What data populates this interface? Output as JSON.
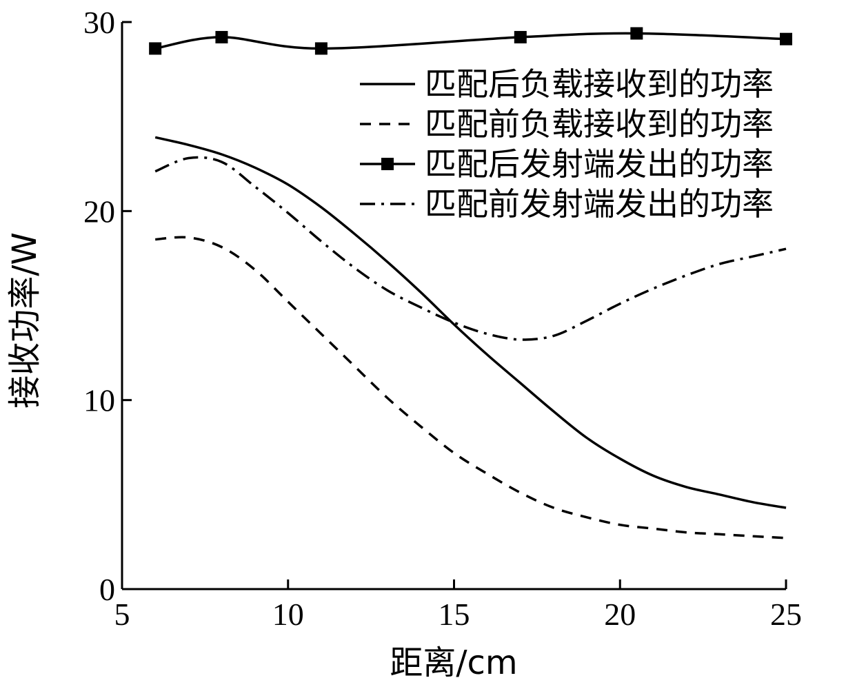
{
  "chart_data": {
    "type": "line",
    "title": "",
    "xlabel": "距离/cm",
    "ylabel": "接收功率/W",
    "xlim": [
      5,
      25
    ],
    "ylim": [
      0,
      30
    ],
    "xticks": [
      5,
      10,
      15,
      20,
      25
    ],
    "yticks": [
      0,
      10,
      20,
      30
    ],
    "grid": false,
    "legend_position": "top-right",
    "series": [
      {
        "name": "匹配后负载接收到的功率",
        "style": "solid",
        "x": [
          6,
          7,
          8,
          9,
          10,
          11,
          12,
          13,
          14,
          15,
          16,
          17,
          18,
          19,
          20,
          21,
          22,
          23,
          24,
          25
        ],
        "y": [
          23.9,
          23.5,
          23.0,
          22.3,
          21.4,
          20.2,
          18.8,
          17.3,
          15.7,
          14.0,
          12.4,
          10.9,
          9.4,
          8.0,
          6.9,
          6.0,
          5.4,
          5.0,
          4.6,
          4.3
        ]
      },
      {
        "name": "匹配前负载接收到的功率",
        "style": "dashed",
        "x": [
          6,
          7,
          8,
          9,
          10,
          11,
          12,
          13,
          14,
          15,
          16,
          17,
          18,
          19,
          20,
          21,
          22,
          23,
          24,
          25
        ],
        "y": [
          18.5,
          18.6,
          18.1,
          16.9,
          15.2,
          13.5,
          11.8,
          10.1,
          8.6,
          7.2,
          6.1,
          5.1,
          4.3,
          3.8,
          3.4,
          3.2,
          3.0,
          2.9,
          2.8,
          2.7
        ]
      },
      {
        "name": "匹配后发射端发出的功率",
        "style": "solid-square-markers",
        "x": [
          6,
          8,
          11,
          17,
          20.5,
          25
        ],
        "y": [
          28.6,
          29.2,
          28.6,
          29.2,
          29.4,
          29.1
        ]
      },
      {
        "name": "匹配前发射端发出的功率",
        "style": "dash-dot",
        "x": [
          6,
          7,
          8,
          9,
          10,
          11,
          12,
          13,
          14,
          15,
          16,
          17,
          18,
          19,
          20,
          21,
          22,
          23,
          24,
          25
        ],
        "y": [
          22.1,
          22.8,
          22.6,
          21.3,
          19.9,
          18.4,
          17.0,
          15.8,
          14.9,
          14.1,
          13.5,
          13.2,
          13.4,
          14.2,
          15.1,
          15.9,
          16.6,
          17.2,
          17.6,
          18.0
        ]
      }
    ]
  }
}
